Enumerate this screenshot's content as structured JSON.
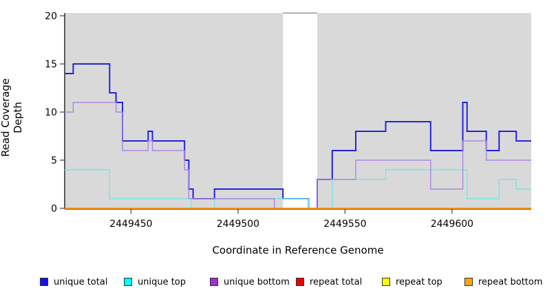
{
  "chart_data": {
    "type": "line",
    "subtype": "step-coverage",
    "title": "",
    "xlabel": "Coordinate in Reference Genome",
    "ylabel": "Read Coverage Depth",
    "xlim": [
      2449419,
      2449637
    ],
    "ylim": [
      0,
      20
    ],
    "x_ticks": [
      2449450,
      2449500,
      2449550,
      2449600
    ],
    "y_ticks": [
      0,
      5,
      10,
      15,
      20
    ],
    "grid": false,
    "legend_position": "bottom",
    "plot_bg_color": "#D9D9D9",
    "axis_color": "#2B2B2B",
    "tick_color": "#666666",
    "highlight_region": {
      "x_start": 2449521,
      "x_end": 2449537,
      "fill": "#FFFFFF",
      "top_border": "#999999"
    },
    "series": [
      {
        "name": "unique total",
        "color": "#2222DD",
        "lw": 2,
        "steps": [
          [
            2449419,
            14
          ],
          [
            2449423,
            15
          ],
          [
            2449440,
            12
          ],
          [
            2449443,
            11
          ],
          [
            2449446,
            7
          ],
          [
            2449458,
            8
          ],
          [
            2449460,
            7
          ],
          [
            2449475,
            5
          ],
          [
            2449477,
            2
          ],
          [
            2449479,
            1
          ],
          [
            2449489,
            2
          ],
          [
            2449521,
            1
          ],
          [
            2449533,
            0
          ],
          [
            2449537,
            3
          ],
          [
            2449544,
            6
          ],
          [
            2449555,
            8
          ],
          [
            2449569,
            9
          ],
          [
            2449590,
            6
          ],
          [
            2449605,
            11
          ],
          [
            2449607,
            8
          ],
          [
            2449616,
            6
          ],
          [
            2449622,
            8
          ],
          [
            2449630,
            7
          ]
        ]
      },
      {
        "name": "unique top",
        "color": "#79E6E2",
        "lw": 1.4,
        "steps": [
          [
            2449419,
            4
          ],
          [
            2449440,
            1
          ],
          [
            2449478,
            0
          ],
          [
            2449489,
            1
          ],
          [
            2449533,
            0
          ],
          [
            2449544,
            3
          ],
          [
            2449569,
            4
          ],
          [
            2449607,
            1
          ],
          [
            2449622,
            3
          ],
          [
            2449630,
            2
          ]
        ]
      },
      {
        "name": "unique bottom",
        "color": "#A987E0",
        "lw": 1.4,
        "steps": [
          [
            2449419,
            10
          ],
          [
            2449423,
            11
          ],
          [
            2449443,
            10
          ],
          [
            2449446,
            6
          ],
          [
            2449458,
            7
          ],
          [
            2449460,
            6
          ],
          [
            2449475,
            4
          ],
          [
            2449477,
            1
          ],
          [
            2449517,
            0
          ],
          [
            2449537,
            3
          ],
          [
            2449555,
            5
          ],
          [
            2449590,
            2
          ],
          [
            2449605,
            7
          ],
          [
            2449616,
            5
          ]
        ]
      },
      {
        "name": "repeat total",
        "color": "#DD2222",
        "lw": 1.4,
        "steps": [
          [
            2449419,
            0
          ]
        ]
      },
      {
        "name": "repeat top",
        "color": "#EEEE33",
        "lw": 1.4,
        "steps": [
          [
            2449419,
            0
          ]
        ]
      },
      {
        "name": "repeat bottom",
        "color": "#FF9414",
        "lw": 1.8,
        "steps": [
          [
            2449419,
            0
          ]
        ]
      }
    ]
  },
  "legend": {
    "swatch_border": "#333333",
    "items": [
      {
        "label": "unique total",
        "color": "#1111EE"
      },
      {
        "label": "unique top",
        "color": "#00FFFF"
      },
      {
        "label": "unique bottom",
        "color": "#9932CC"
      },
      {
        "label": "repeat total",
        "color": "#EE0000"
      },
      {
        "label": "repeat top",
        "color": "#FFFF00"
      },
      {
        "label": "repeat bottom",
        "color": "#FFA500"
      }
    ]
  }
}
